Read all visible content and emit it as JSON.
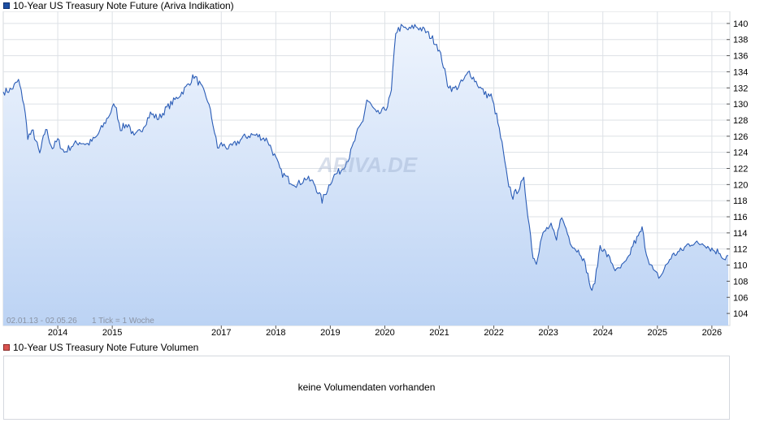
{
  "price_legend": "10-Year US Treasury Note Future (Ariva Indikation)",
  "volume_legend": "10-Year US Treasury Note Future Volumen",
  "volume_empty": "keine Volumendaten vorhanden",
  "period": "02.01.13 - 02.05.26",
  "tick_info": "1 Tick = 1 Woche",
  "watermark": "ARIVA.DE",
  "colors": {
    "line": "#2a5cb6",
    "fill_top": "#eef4fd",
    "fill_bottom": "#bcd3f4",
    "grid": "#dde1e6"
  },
  "chart_data": {
    "type": "area",
    "x_unit": "year",
    "xlim": [
      2013.0,
      2026.33
    ],
    "ylim": [
      102.5,
      141.5
    ],
    "y_ticks": [
      104,
      106,
      108,
      110,
      112,
      114,
      116,
      118,
      120,
      122,
      124,
      126,
      128,
      130,
      132,
      134,
      136,
      138,
      140
    ],
    "x_ticks": [
      {
        "label": "2014",
        "x": 2014.0
      },
      {
        "label": "2015",
        "x": 2015.0
      },
      {
        "label": "2017",
        "x": 2017.0
      },
      {
        "label": "2018",
        "x": 2018.0
      },
      {
        "label": "2019",
        "x": 2019.0
      },
      {
        "label": "2020",
        "x": 2020.0
      },
      {
        "label": "2021",
        "x": 2021.0
      },
      {
        "label": "2022",
        "x": 2022.0
      },
      {
        "label": "2023",
        "x": 2023.0
      },
      {
        "label": "2024",
        "x": 2024.0
      },
      {
        "label": "2025",
        "x": 2025.0
      },
      {
        "label": "2026",
        "x": 2026.0
      }
    ],
    "series": [
      {
        "points": [
          [
            2013.0,
            131.5
          ],
          [
            2013.15,
            131.8
          ],
          [
            2013.28,
            132.9
          ],
          [
            2013.38,
            130.0
          ],
          [
            2013.45,
            126.0
          ],
          [
            2013.55,
            126.5
          ],
          [
            2013.67,
            123.8
          ],
          [
            2013.78,
            127.0
          ],
          [
            2013.9,
            124.5
          ],
          [
            2014.0,
            125.5
          ],
          [
            2014.12,
            124.0
          ],
          [
            2014.25,
            124.8
          ],
          [
            2014.4,
            125.3
          ],
          [
            2014.55,
            125.0
          ],
          [
            2014.7,
            125.8
          ],
          [
            2014.85,
            127.5
          ],
          [
            2015.05,
            130.0
          ],
          [
            2015.15,
            127.0
          ],
          [
            2015.3,
            127.5
          ],
          [
            2015.4,
            125.8
          ],
          [
            2015.55,
            127.0
          ],
          [
            2015.7,
            128.8
          ],
          [
            2015.85,
            128.2
          ],
          [
            2016.0,
            129.5
          ],
          [
            2016.15,
            130.5
          ],
          [
            2016.35,
            132.0
          ],
          [
            2016.5,
            133.5
          ],
          [
            2016.6,
            132.5
          ],
          [
            2016.75,
            130.5
          ],
          [
            2016.85,
            127.5
          ],
          [
            2016.93,
            124.5
          ],
          [
            2017.0,
            125.0
          ],
          [
            2017.15,
            124.5
          ],
          [
            2017.25,
            125.0
          ],
          [
            2017.4,
            125.8
          ],
          [
            2017.55,
            126.2
          ],
          [
            2017.7,
            126.0
          ],
          [
            2017.85,
            125.5
          ],
          [
            2017.95,
            124.0
          ],
          [
            2018.1,
            121.5
          ],
          [
            2018.25,
            120.5
          ],
          [
            2018.4,
            120.0
          ],
          [
            2018.55,
            120.8
          ],
          [
            2018.7,
            120.2
          ],
          [
            2018.85,
            118.0
          ],
          [
            2018.95,
            119.5
          ],
          [
            2019.05,
            121.0
          ],
          [
            2019.2,
            121.8
          ],
          [
            2019.35,
            123.5
          ],
          [
            2019.5,
            126.5
          ],
          [
            2019.6,
            128.0
          ],
          [
            2019.67,
            130.5
          ],
          [
            2019.75,
            129.8
          ],
          [
            2019.85,
            128.7
          ],
          [
            2019.95,
            129.0
          ],
          [
            2020.05,
            129.8
          ],
          [
            2020.12,
            131.5
          ],
          [
            2020.2,
            139.0
          ],
          [
            2020.3,
            139.5
          ],
          [
            2020.45,
            139.2
          ],
          [
            2020.55,
            139.7
          ],
          [
            2020.65,
            139.4
          ],
          [
            2020.75,
            139.0
          ],
          [
            2020.85,
            138.3
          ],
          [
            2020.95,
            137.5
          ],
          [
            2021.05,
            135.5
          ],
          [
            2021.15,
            132.5
          ],
          [
            2021.25,
            131.8
          ],
          [
            2021.35,
            132.2
          ],
          [
            2021.45,
            133.0
          ],
          [
            2021.55,
            134.0
          ],
          [
            2021.65,
            133.0
          ],
          [
            2021.75,
            132.0
          ],
          [
            2021.85,
            131.2
          ],
          [
            2021.95,
            131.0
          ],
          [
            2022.05,
            128.5
          ],
          [
            2022.15,
            125.0
          ],
          [
            2022.25,
            120.5
          ],
          [
            2022.35,
            118.5
          ],
          [
            2022.45,
            119.5
          ],
          [
            2022.55,
            120.5
          ],
          [
            2022.65,
            115.0
          ],
          [
            2022.72,
            111.0
          ],
          [
            2022.78,
            110.5
          ],
          [
            2022.88,
            113.5
          ],
          [
            2022.97,
            114.5
          ],
          [
            2023.05,
            114.8
          ],
          [
            2023.15,
            113.0
          ],
          [
            2023.22,
            116.0
          ],
          [
            2023.3,
            115.0
          ],
          [
            2023.4,
            113.0
          ],
          [
            2023.5,
            112.0
          ],
          [
            2023.6,
            111.5
          ],
          [
            2023.7,
            109.5
          ],
          [
            2023.8,
            106.5
          ],
          [
            2023.88,
            109.0
          ],
          [
            2023.95,
            112.5
          ],
          [
            2024.05,
            111.5
          ],
          [
            2024.15,
            110.5
          ],
          [
            2024.25,
            109.2
          ],
          [
            2024.35,
            109.8
          ],
          [
            2024.45,
            110.5
          ],
          [
            2024.55,
            112.5
          ],
          [
            2024.65,
            113.5
          ],
          [
            2024.72,
            114.5
          ],
          [
            2024.8,
            111.5
          ],
          [
            2024.88,
            110.0
          ],
          [
            2024.95,
            109.0
          ],
          [
            2025.05,
            108.5
          ],
          [
            2025.15,
            109.8
          ],
          [
            2025.25,
            111.0
          ],
          [
            2025.35,
            111.5
          ],
          [
            2025.45,
            111.8
          ],
          [
            2025.55,
            112.5
          ],
          [
            2025.65,
            112.8
          ],
          [
            2025.75,
            112.6
          ],
          [
            2025.85,
            112.8
          ],
          [
            2025.95,
            112.2
          ],
          [
            2026.05,
            111.8
          ],
          [
            2026.15,
            111.6
          ],
          [
            2026.22,
            110.8
          ],
          [
            2026.3,
            111.2
          ]
        ]
      }
    ]
  }
}
